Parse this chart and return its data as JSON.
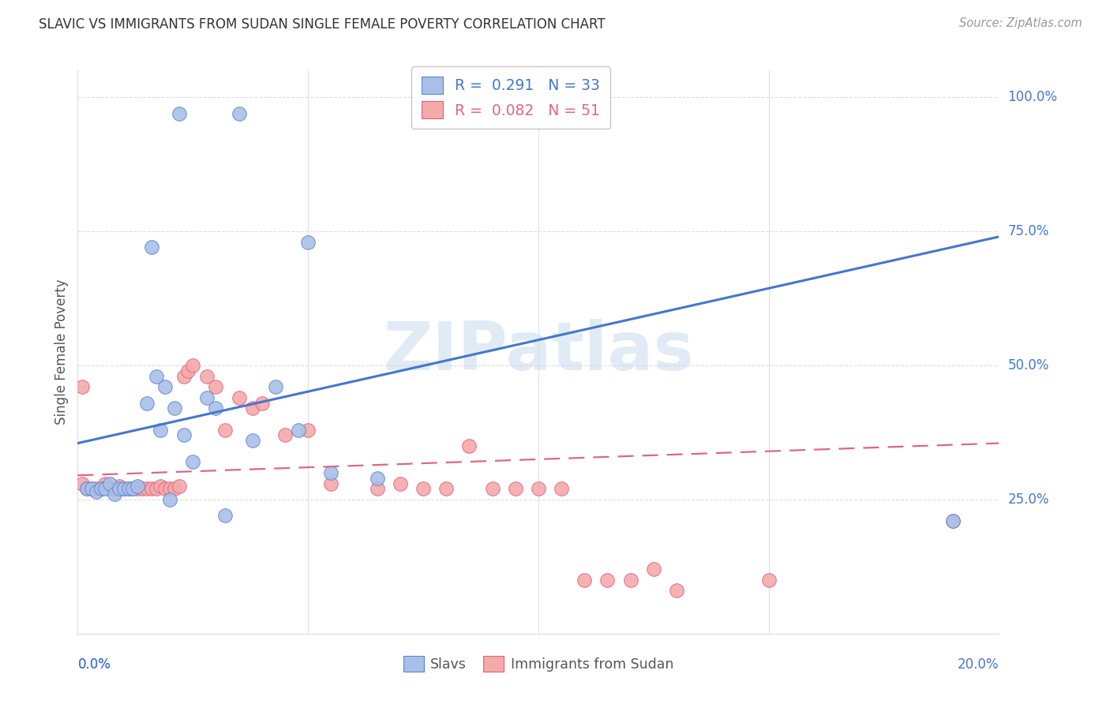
{
  "title": "SLAVIC VS IMMIGRANTS FROM SUDAN SINGLE FEMALE POVERTY CORRELATION CHART",
  "source": "Source: ZipAtlas.com",
  "ylabel": "Single Female Poverty",
  "legend_entry1": "R =  0.291   N = 33",
  "legend_entry2": "R =  0.082   N = 51",
  "legend_label1": "Slavs",
  "legend_label2": "Immigrants from Sudan",
  "blue_fill": "#AABFE8",
  "blue_edge": "#5588CC",
  "pink_fill": "#F5AAAA",
  "pink_edge": "#E06080",
  "blue_line": "#4477CC",
  "pink_line": "#DD6688",
  "watermark": "ZIPatlas",
  "slavs_x": [
    0.022,
    0.035,
    0.016,
    0.05,
    0.002,
    0.003,
    0.004,
    0.005,
    0.006,
    0.007,
    0.008,
    0.009,
    0.01,
    0.011,
    0.012,
    0.013,
    0.015,
    0.017,
    0.018,
    0.019,
    0.02,
    0.021,
    0.023,
    0.025,
    0.028,
    0.03,
    0.032,
    0.038,
    0.043,
    0.048,
    0.055,
    0.065,
    0.19
  ],
  "slavs_y": [
    0.97,
    0.97,
    0.72,
    0.73,
    0.27,
    0.27,
    0.265,
    0.27,
    0.27,
    0.28,
    0.26,
    0.27,
    0.27,
    0.27,
    0.27,
    0.275,
    0.43,
    0.48,
    0.38,
    0.46,
    0.25,
    0.42,
    0.37,
    0.32,
    0.44,
    0.42,
    0.22,
    0.36,
    0.46,
    0.38,
    0.3,
    0.29,
    0.21
  ],
  "sudan_x": [
    0.001,
    0.002,
    0.003,
    0.004,
    0.005,
    0.006,
    0.007,
    0.008,
    0.009,
    0.01,
    0.011,
    0.012,
    0.013,
    0.014,
    0.015,
    0.016,
    0.017,
    0.018,
    0.019,
    0.02,
    0.021,
    0.022,
    0.023,
    0.024,
    0.025,
    0.028,
    0.03,
    0.032,
    0.035,
    0.038,
    0.04,
    0.045,
    0.05,
    0.055,
    0.065,
    0.07,
    0.075,
    0.08,
    0.085,
    0.09,
    0.095,
    0.1,
    0.105,
    0.11,
    0.115,
    0.12,
    0.125,
    0.13,
    0.15,
    0.19,
    0.001
  ],
  "sudan_y": [
    0.28,
    0.27,
    0.27,
    0.27,
    0.27,
    0.28,
    0.27,
    0.27,
    0.275,
    0.27,
    0.27,
    0.27,
    0.27,
    0.27,
    0.27,
    0.27,
    0.27,
    0.275,
    0.27,
    0.27,
    0.27,
    0.275,
    0.48,
    0.49,
    0.5,
    0.48,
    0.46,
    0.38,
    0.44,
    0.42,
    0.43,
    0.37,
    0.38,
    0.28,
    0.27,
    0.28,
    0.27,
    0.27,
    0.35,
    0.27,
    0.27,
    0.27,
    0.27,
    0.1,
    0.1,
    0.1,
    0.12,
    0.08,
    0.1,
    0.21,
    0.46
  ],
  "xlim": [
    0.0,
    0.2
  ],
  "ylim": [
    0.0,
    1.05
  ],
  "blue_trend_x": [
    0.0,
    0.2
  ],
  "blue_trend_y": [
    0.355,
    0.74
  ],
  "pink_trend_x": [
    0.0,
    0.2
  ],
  "pink_trend_y": [
    0.295,
    0.355
  ],
  "ytick_vals": [
    0.25,
    0.5,
    0.75,
    1.0
  ],
  "ytick_labels": [
    "25.0%",
    "50.0%",
    "75.0%",
    "100.0%"
  ],
  "xtick_vals": [
    0.05,
    0.1,
    0.15
  ],
  "background_color": "#FFFFFF",
  "grid_color": "#DDDDDD",
  "title_color": "#333333",
  "source_color": "#999999",
  "axis_label_color": "#555555",
  "tick_label_color": "#4477CC"
}
